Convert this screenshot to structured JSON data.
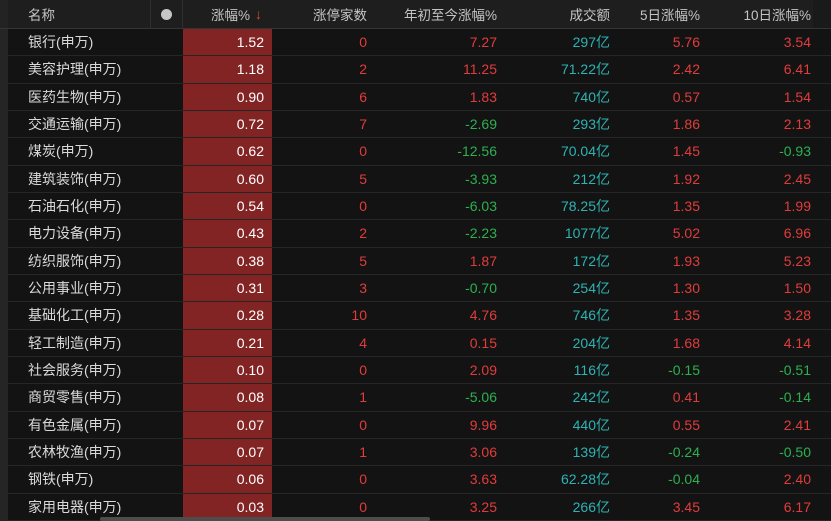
{
  "colors": {
    "up": "#e13c3c",
    "down": "#2cb050",
    "turnover": "#2eb3b3",
    "bar": "#832424"
  },
  "table": {
    "columns": [
      {
        "key": "name",
        "label": "名称"
      },
      {
        "key": "dot",
        "label": ""
      },
      {
        "key": "change",
        "label": "涨幅%",
        "sort_icon": "↓"
      },
      {
        "key": "limit_up",
        "label": "涨停家数"
      },
      {
        "key": "ytd",
        "label": "年初至今涨幅%"
      },
      {
        "key": "turnover",
        "label": "成交额"
      },
      {
        "key": "d5",
        "label": "5日涨幅%"
      },
      {
        "key": "d10",
        "label": "10日涨幅%"
      }
    ],
    "rows": [
      {
        "name": "银行(申万)",
        "change": "1.52",
        "limit_up": "0",
        "ytd": "7.27",
        "turnover": "297亿",
        "d5": "5.76",
        "d10": "3.54"
      },
      {
        "name": "美容护理(申万)",
        "change": "1.18",
        "limit_up": "2",
        "ytd": "11.25",
        "turnover": "71.22亿",
        "d5": "2.42",
        "d10": "6.41"
      },
      {
        "name": "医药生物(申万)",
        "change": "0.90",
        "limit_up": "6",
        "ytd": "1.83",
        "turnover": "740亿",
        "d5": "0.57",
        "d10": "1.54"
      },
      {
        "name": "交通运输(申万)",
        "change": "0.72",
        "limit_up": "7",
        "ytd": "-2.69",
        "turnover": "293亿",
        "d5": "1.86",
        "d10": "2.13"
      },
      {
        "name": "煤炭(申万)",
        "change": "0.62",
        "limit_up": "0",
        "ytd": "-12.56",
        "turnover": "70.04亿",
        "d5": "1.45",
        "d10": "-0.93"
      },
      {
        "name": "建筑装饰(申万)",
        "change": "0.60",
        "limit_up": "5",
        "ytd": "-3.93",
        "turnover": "212亿",
        "d5": "1.92",
        "d10": "2.45"
      },
      {
        "name": "石油石化(申万)",
        "change": "0.54",
        "limit_up": "0",
        "ytd": "-6.03",
        "turnover": "78.25亿",
        "d5": "1.35",
        "d10": "1.99"
      },
      {
        "name": "电力设备(申万)",
        "change": "0.43",
        "limit_up": "2",
        "ytd": "-2.23",
        "turnover": "1077亿",
        "d5": "5.02",
        "d10": "6.96"
      },
      {
        "name": "纺织服饰(申万)",
        "change": "0.38",
        "limit_up": "5",
        "ytd": "1.87",
        "turnover": "172亿",
        "d5": "1.93",
        "d10": "5.23"
      },
      {
        "name": "公用事业(申万)",
        "change": "0.31",
        "limit_up": "3",
        "ytd": "-0.70",
        "turnover": "254亿",
        "d5": "1.30",
        "d10": "1.50"
      },
      {
        "name": "基础化工(申万)",
        "change": "0.28",
        "limit_up": "10",
        "ytd": "4.76",
        "turnover": "746亿",
        "d5": "1.35",
        "d10": "3.28"
      },
      {
        "name": "轻工制造(申万)",
        "change": "0.21",
        "limit_up": "4",
        "ytd": "0.15",
        "turnover": "204亿",
        "d5": "1.68",
        "d10": "4.14"
      },
      {
        "name": "社会服务(申万)",
        "change": "0.10",
        "limit_up": "0",
        "ytd": "2.09",
        "turnover": "116亿",
        "d5": "-0.15",
        "d10": "-0.51"
      },
      {
        "name": "商贸零售(申万)",
        "change": "0.08",
        "limit_up": "1",
        "ytd": "-5.06",
        "turnover": "242亿",
        "d5": "0.41",
        "d10": "-0.14"
      },
      {
        "name": "有色金属(申万)",
        "change": "0.07",
        "limit_up": "0",
        "ytd": "9.96",
        "turnover": "440亿",
        "d5": "0.55",
        "d10": "2.41"
      },
      {
        "name": "农林牧渔(申万)",
        "change": "0.07",
        "limit_up": "1",
        "ytd": "3.06",
        "turnover": "139亿",
        "d5": "-0.24",
        "d10": "-0.50"
      },
      {
        "name": "钢铁(申万)",
        "change": "0.06",
        "limit_up": "0",
        "ytd": "3.63",
        "turnover": "62.28亿",
        "d5": "-0.04",
        "d10": "2.40"
      },
      {
        "name": "家用电器(申万)",
        "change": "0.03",
        "limit_up": "0",
        "ytd": "3.25",
        "turnover": "266亿",
        "d5": "3.45",
        "d10": "6.17"
      }
    ]
  }
}
